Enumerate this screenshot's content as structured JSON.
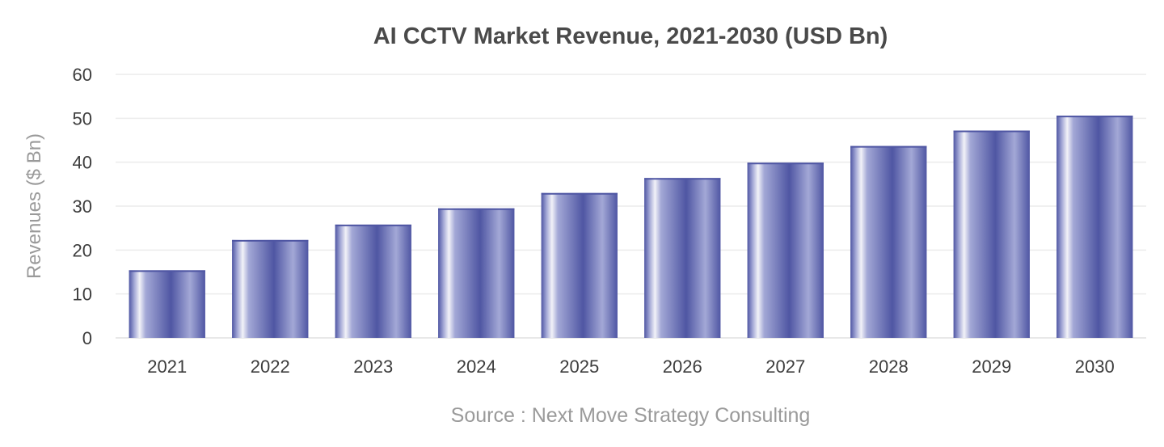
{
  "chart_data": {
    "type": "bar",
    "title": "AI CCTV Market Revenue, 2021-2030 (USD Bn)",
    "ylabel": "Revenues ($ Bn)",
    "xlabel": "",
    "source": "Source : Next Move Strategy Consulting",
    "categories": [
      "2021",
      "2022",
      "2023",
      "2024",
      "2025",
      "2026",
      "2027",
      "2028",
      "2029",
      "2030"
    ],
    "values": [
      15.4,
      22.3,
      25.8,
      29.5,
      33.0,
      36.4,
      39.9,
      43.7,
      47.2,
      50.6
    ],
    "ylim": [
      0,
      60
    ],
    "yticks": [
      0,
      10,
      20,
      30,
      40,
      50,
      60
    ],
    "grid": true,
    "colors": {
      "bar_dark": "#4f56a3",
      "bar_light": "#a3a8d6",
      "bar_highlight": "#f2f2f8"
    }
  }
}
